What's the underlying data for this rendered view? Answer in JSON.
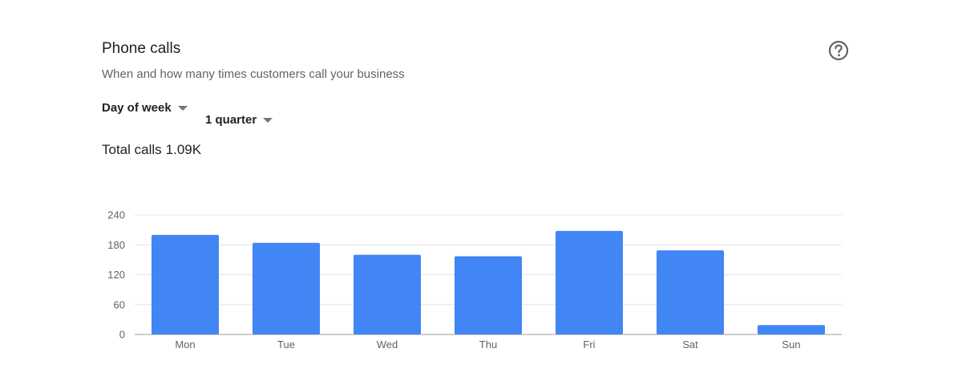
{
  "card": {
    "title": "Phone calls",
    "subtitle": "When and how many times customers call your business",
    "help_icon": "help-circle-icon"
  },
  "filters": {
    "group_by": {
      "selected": "Day of week"
    },
    "range": {
      "selected": "1 quarter"
    }
  },
  "summary": {
    "label": "Total calls",
    "value": "1.09K"
  },
  "colors": {
    "bar": "#4285f4",
    "grid": "#e6e6e6",
    "axis": "#9e9e9e"
  },
  "chart_data": {
    "type": "bar",
    "categories": [
      "Mon",
      "Tue",
      "Wed",
      "Thu",
      "Fri",
      "Sat",
      "Sun"
    ],
    "values": [
      200,
      184,
      160,
      157,
      208,
      169,
      19
    ],
    "ylim": [
      0,
      240
    ],
    "yticks": [
      0,
      60,
      120,
      180,
      240
    ],
    "grid": true
  }
}
